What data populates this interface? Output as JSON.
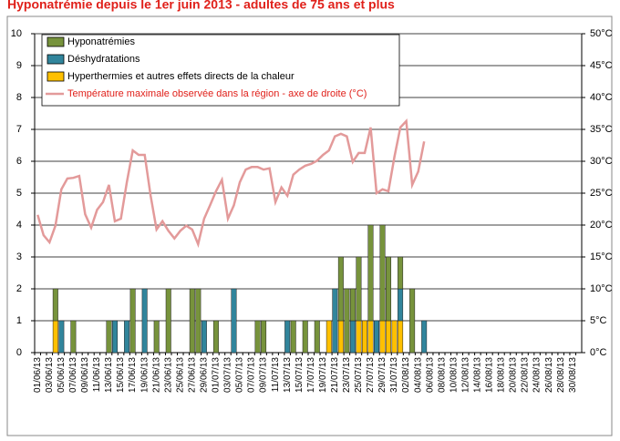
{
  "chart_data": {
    "type": "bar",
    "title": "Hyponatrémie depuis le 1er juin 2013 - adultes de 75 ans et plus",
    "categories": [
      "01/06/13",
      null,
      "03/06/13",
      null,
      "05/06/13",
      null,
      "07/06/13",
      null,
      "09/06/13",
      null,
      "11/06/13",
      null,
      "13/06/13",
      null,
      "15/06/13",
      null,
      "17/06/13",
      null,
      "19/06/13",
      null,
      "21/06/13",
      null,
      "23/06/13",
      null,
      "25/06/13",
      null,
      "27/06/13",
      null,
      "29/06/13",
      null,
      "01/07/13",
      null,
      "03/07/13",
      null,
      "05/07/13",
      null,
      "07/07/13",
      null,
      "09/07/13",
      null,
      "11/07/13",
      null,
      "13/07/13",
      null,
      "15/07/13",
      null,
      "17/07/13",
      null,
      "19/07/13",
      null,
      "21/07/13",
      null,
      "23/07/13",
      null,
      "25/07/13",
      null,
      "27/07/13",
      null,
      "29/07/13",
      null,
      "31/07/13",
      null,
      "02/08/13",
      null,
      "04/08/13",
      null,
      "06/08/13",
      null,
      "08/08/13",
      null,
      "10/08/13",
      null,
      "12/08/13",
      null,
      "14/08/13",
      null,
      "16/08/13",
      null,
      "18/08/13",
      null,
      "20/08/13",
      null,
      "22/08/13",
      null,
      "24/08/13",
      null,
      "26/08/13",
      null,
      "28/08/13",
      null,
      "30/08/13",
      null
    ],
    "series": [
      {
        "name": "Hyponatrémies",
        "type": "bar",
        "color": "#77933c",
        "values": [
          0,
          0,
          0,
          1,
          0,
          0,
          1,
          0,
          0,
          0,
          0,
          0,
          1,
          0,
          0,
          0,
          2,
          0,
          0,
          0,
          1,
          0,
          2,
          0,
          0,
          0,
          2,
          2,
          0,
          0,
          1,
          0,
          0,
          0,
          0,
          0,
          0,
          1,
          1,
          0,
          0,
          0,
          0,
          1,
          0,
          1,
          0,
          1,
          0,
          0,
          0,
          2,
          2,
          1,
          2,
          0,
          3,
          0,
          3,
          2,
          0,
          1,
          0,
          2,
          0,
          0,
          0,
          0,
          0,
          0,
          0,
          0,
          0,
          0,
          0,
          0,
          0,
          0,
          0,
          0,
          0,
          0,
          0,
          0,
          0,
          0,
          0,
          0,
          0,
          0,
          0,
          0
        ]
      },
      {
        "name": "Déshydratations",
        "type": "bar",
        "color": "#31859c",
        "values": [
          0,
          0,
          0,
          0,
          1,
          0,
          0,
          0,
          0,
          0,
          0,
          0,
          0,
          1,
          0,
          1,
          0,
          0,
          2,
          0,
          0,
          0,
          0,
          0,
          0,
          0,
          0,
          0,
          1,
          0,
          0,
          0,
          0,
          2,
          0,
          0,
          0,
          0,
          0,
          0,
          0,
          0,
          1,
          0,
          0,
          0,
          0,
          0,
          0,
          0,
          2,
          0,
          0,
          1,
          0,
          0,
          0,
          1,
          0,
          0,
          0,
          1,
          0,
          0,
          0,
          1,
          0,
          0,
          0,
          0,
          0,
          0,
          0,
          0,
          0,
          0,
          0,
          0,
          0,
          0,
          0,
          0,
          0,
          0,
          0,
          0,
          0,
          0,
          0,
          0,
          0,
          0
        ]
      },
      {
        "name": "Hyperthermies et autres effets directs de la chaleur",
        "type": "bar",
        "color": "#ffc000",
        "values": [
          0,
          0,
          0,
          1,
          0,
          0,
          0,
          0,
          0,
          0,
          0,
          0,
          0,
          0,
          0,
          0,
          0,
          0,
          0,
          0,
          0,
          0,
          0,
          0,
          0,
          0,
          0,
          0,
          0,
          0,
          0,
          0,
          0,
          0,
          0,
          0,
          0,
          0,
          0,
          0,
          0,
          0,
          0,
          0,
          0,
          0,
          0,
          0,
          0,
          1,
          0,
          1,
          0,
          0,
          1,
          1,
          1,
          0,
          1,
          1,
          1,
          1,
          0,
          0,
          0,
          0,
          0,
          0,
          0,
          0,
          0,
          0,
          0,
          0,
          0,
          0,
          0,
          0,
          0,
          0,
          0,
          0,
          0,
          0,
          0,
          0,
          0,
          0,
          0,
          0,
          0,
          0
        ]
      },
      {
        "name": "Température maximale observée dans la région - axe de droite (°C)",
        "type": "line",
        "axis": "y2",
        "color": "#e39a9a",
        "values": [
          21.6,
          18.4,
          17.3,
          19.9,
          25.6,
          27.3,
          27.4,
          27.7,
          21.7,
          19.6,
          22.4,
          23.6,
          26.3,
          20.6,
          21,
          26.7,
          31.7,
          31,
          31,
          24.6,
          19.3,
          20.6,
          19.1,
          17.9,
          19.1,
          19.9,
          19.3,
          17,
          21,
          23.1,
          25.3,
          27.1,
          21,
          23.1,
          26.7,
          28.7,
          29.1,
          29.1,
          28.7,
          28.9,
          23.6,
          25.9,
          24.6,
          27.9,
          28.7,
          29.3,
          29.6,
          30.1,
          31,
          31.7,
          33.9,
          34.3,
          33.9,
          29.9,
          31.3,
          31.3,
          35.3,
          25,
          25.6,
          25.3,
          30.7,
          35.3,
          36.3,
          26.3,
          28.4,
          33.1,
          null,
          null,
          null,
          null,
          null,
          null,
          null,
          null,
          null,
          null,
          null,
          null,
          null,
          null,
          null,
          null,
          null,
          null,
          null,
          null,
          null,
          null,
          null,
          null,
          null,
          null
        ]
      }
    ],
    "ylim": [
      0,
      10
    ],
    "yticks": [
      0,
      1,
      2,
      3,
      4,
      5,
      6,
      7,
      8,
      9,
      10
    ],
    "y2lim": [
      0,
      50
    ],
    "y2ticks": [
      {
        "value": 0,
        "label": "0°C"
      },
      {
        "value": 5,
        "label": "5°C"
      },
      {
        "value": 10,
        "label": "10°C"
      },
      {
        "value": 15,
        "label": "15°C"
      },
      {
        "value": 20,
        "label": "20°C"
      },
      {
        "value": 25,
        "label": "25°C"
      },
      {
        "value": 30,
        "label": "30°C"
      },
      {
        "value": 35,
        "label": "35°C"
      },
      {
        "value": 40,
        "label": "40°C"
      },
      {
        "value": 45,
        "label": "45°C"
      },
      {
        "value": 50,
        "label": "50°C"
      }
    ],
    "grid": true,
    "legend": "top-left"
  }
}
